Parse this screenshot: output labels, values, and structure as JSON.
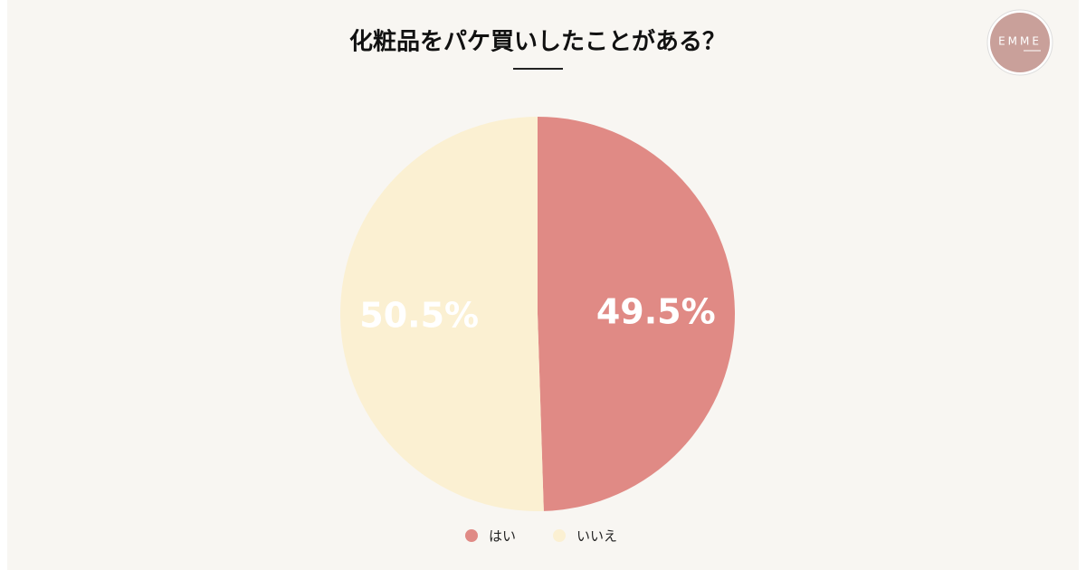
{
  "logo": "EMME",
  "chart_data": {
    "type": "pie",
    "title": "化粧品をパケ買いしたことがある？",
    "categories": [
      "はい",
      "いいえ"
    ],
    "values": [
      49.5,
      50.5
    ],
    "value_labels": [
      "49.5%",
      "50.5%"
    ],
    "colors": [
      "#e08a85",
      "#fbf0d2"
    ],
    "legend": "bottom"
  }
}
